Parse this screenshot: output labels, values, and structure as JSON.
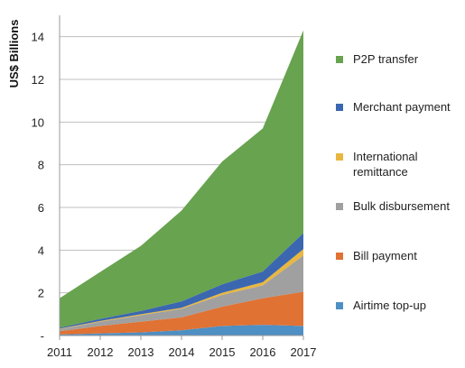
{
  "chart_data": {
    "type": "area",
    "stacked": true,
    "title": "",
    "xlabel": "",
    "ylabel": "US$ Billions",
    "x": [
      "2011",
      "2012",
      "2013",
      "2014",
      "2015",
      "2016",
      "2017"
    ],
    "ylim": [
      0,
      15
    ],
    "yticks": [
      0,
      2,
      4,
      6,
      8,
      10,
      12,
      14
    ],
    "ytick_labels": [
      "-",
      "2",
      "4",
      "6",
      "8",
      "10",
      "12",
      "14"
    ],
    "grid": "horizontal",
    "legend_position": "right",
    "series": [
      {
        "name": "Airtime top-up",
        "color": "#4e8fc4",
        "values": [
          0.05,
          0.1,
          0.15,
          0.25,
          0.45,
          0.5,
          0.45
        ]
      },
      {
        "name": "Bill payment",
        "color": "#e07234",
        "values": [
          0.15,
          0.35,
          0.5,
          0.6,
          0.9,
          1.25,
          1.6
        ]
      },
      {
        "name": "Bulk disbursement",
        "color": "#a0a0a0",
        "values": [
          0.1,
          0.2,
          0.3,
          0.4,
          0.55,
          0.6,
          1.7
        ]
      },
      {
        "name": "International remittance",
        "color": "#e9b73f",
        "values": [
          0.02,
          0.03,
          0.05,
          0.05,
          0.1,
          0.15,
          0.3
        ]
      },
      {
        "name": "Merchant payment",
        "color": "#3b67b0",
        "values": [
          0.05,
          0.1,
          0.15,
          0.3,
          0.4,
          0.5,
          0.75
        ]
      },
      {
        "name": "P2P transfer",
        "color": "#68a34f",
        "values": [
          1.38,
          2.2,
          3.05,
          4.25,
          5.75,
          6.7,
          9.5
        ]
      }
    ]
  }
}
